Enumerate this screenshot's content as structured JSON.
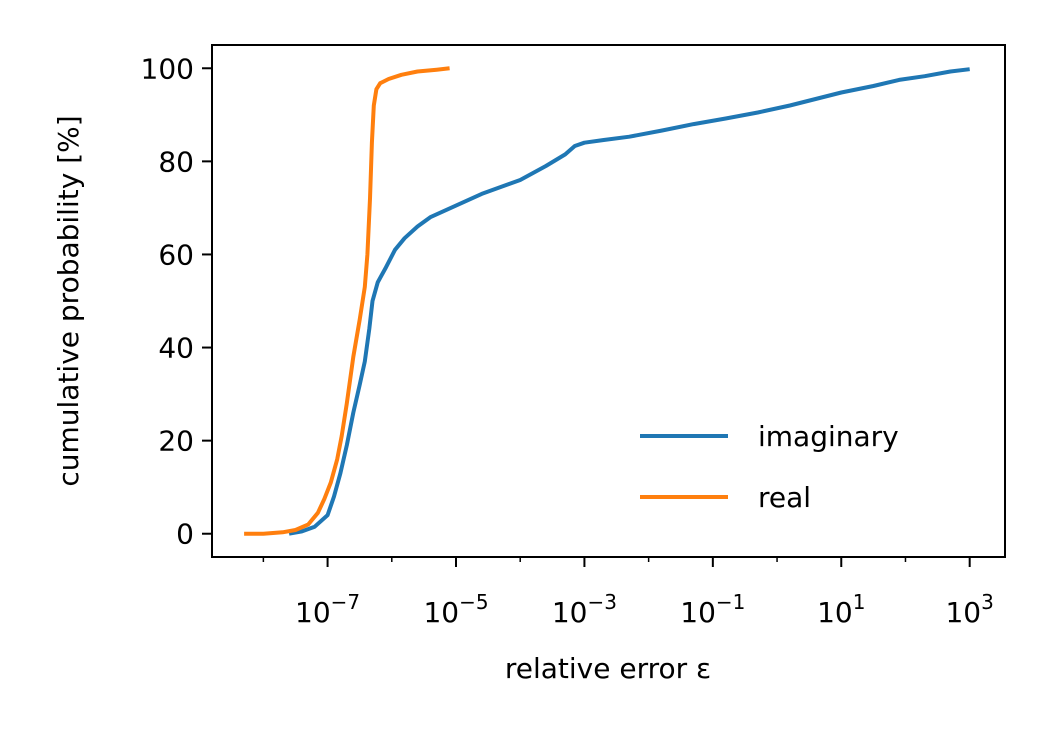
{
  "chart_data": {
    "type": "line",
    "title": "",
    "xlabel": "relative error ε",
    "ylabel": "cumulative probability [%]",
    "xscale": "log",
    "xlim_exponent": [
      -8.8,
      3.55
    ],
    "ylim": [
      -5,
      105
    ],
    "x_ticks": [
      {
        "exp": -7,
        "base": "10",
        "sup": "−7"
      },
      {
        "exp": -5,
        "base": "10",
        "sup": "−5"
      },
      {
        "exp": -3,
        "base": "10",
        "sup": "−3"
      },
      {
        "exp": -1,
        "base": "10",
        "sup": "−1"
      },
      {
        "exp": 1,
        "base": "10",
        "sup": "1"
      },
      {
        "exp": 3,
        "base": "10",
        "sup": "3"
      }
    ],
    "y_ticks": [
      0,
      20,
      40,
      60,
      80,
      100
    ],
    "grid": false,
    "legend": "lower-right",
    "series": [
      {
        "name": "imaginary",
        "color": "#1f77b4",
        "points": [
          [
            -7.6,
            0
          ],
          [
            -7.4,
            0.5
          ],
          [
            -7.2,
            1.5
          ],
          [
            -7.0,
            4
          ],
          [
            -6.9,
            8
          ],
          [
            -6.8,
            13
          ],
          [
            -6.7,
            19
          ],
          [
            -6.6,
            26
          ],
          [
            -6.5,
            32
          ],
          [
            -6.42,
            37
          ],
          [
            -6.35,
            44
          ],
          [
            -6.3,
            50
          ],
          [
            -6.22,
            54
          ],
          [
            -6.1,
            57
          ],
          [
            -5.95,
            61
          ],
          [
            -5.8,
            63.5
          ],
          [
            -5.6,
            66
          ],
          [
            -5.4,
            68
          ],
          [
            -5.0,
            70.5
          ],
          [
            -4.6,
            73
          ],
          [
            -4.0,
            76
          ],
          [
            -3.6,
            79
          ],
          [
            -3.3,
            81.5
          ],
          [
            -3.15,
            83.3
          ],
          [
            -3.0,
            84
          ],
          [
            -2.7,
            84.6
          ],
          [
            -2.3,
            85.3
          ],
          [
            -1.8,
            86.6
          ],
          [
            -1.3,
            88
          ],
          [
            -0.8,
            89.2
          ],
          [
            -0.3,
            90.5
          ],
          [
            0.2,
            92
          ],
          [
            0.6,
            93.4
          ],
          [
            1.0,
            94.8
          ],
          [
            1.5,
            96.2
          ],
          [
            1.9,
            97.5
          ],
          [
            2.3,
            98.3
          ],
          [
            2.7,
            99.3
          ],
          [
            3.0,
            99.8
          ]
        ]
      },
      {
        "name": "real",
        "color": "#ff7f0e",
        "points": [
          [
            -8.3,
            0
          ],
          [
            -8.0,
            0
          ],
          [
            -7.7,
            0.3
          ],
          [
            -7.5,
            0.8
          ],
          [
            -7.3,
            2
          ],
          [
            -7.15,
            4.5
          ],
          [
            -7.05,
            7.5
          ],
          [
            -6.95,
            11
          ],
          [
            -6.85,
            16
          ],
          [
            -6.78,
            21
          ],
          [
            -6.7,
            28
          ],
          [
            -6.6,
            38
          ],
          [
            -6.5,
            46
          ],
          [
            -6.42,
            53
          ],
          [
            -6.38,
            60
          ],
          [
            -6.34,
            72
          ],
          [
            -6.31,
            84
          ],
          [
            -6.28,
            92
          ],
          [
            -6.24,
            95.5
          ],
          [
            -6.18,
            96.8
          ],
          [
            -6.05,
            97.7
          ],
          [
            -5.85,
            98.6
          ],
          [
            -5.6,
            99.3
          ],
          [
            -5.3,
            99.7
          ],
          [
            -5.1,
            100
          ]
        ]
      }
    ]
  }
}
